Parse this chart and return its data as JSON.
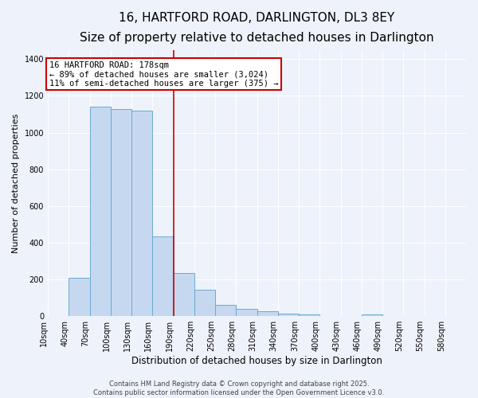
{
  "title": "16, HARTFORD ROAD, DARLINGTON, DL3 8EY",
  "subtitle": "Size of property relative to detached houses in Darlington",
  "xlabel": "Distribution of detached houses by size in Darlington",
  "ylabel": "Number of detached properties",
  "bar_color": "#c5d8f0",
  "bar_edge_color": "#6aabd2",
  "background_color": "#eef2fb",
  "grid_color": "#ffffff",
  "vline_x": 190,
  "annotation_text": "16 HARTFORD ROAD: 178sqm\n← 89% of detached houses are smaller (3,024)\n11% of semi-detached houses are larger (375) →",
  "annotation_box_facecolor": "#ffffff",
  "annotation_box_edgecolor": "#cc0000",
  "vline_color": "#cc0000",
  "bins": [
    10,
    40,
    70,
    100,
    130,
    160,
    190,
    220,
    250,
    280,
    310,
    340,
    370,
    400,
    430,
    460,
    490,
    520,
    550,
    580,
    610
  ],
  "values": [
    0,
    210,
    1140,
    1130,
    1120,
    435,
    235,
    145,
    60,
    40,
    25,
    15,
    10,
    0,
    0,
    10,
    0,
    0,
    0,
    0
  ],
  "ylim": [
    0,
    1450
  ],
  "yticks": [
    0,
    200,
    400,
    600,
    800,
    1000,
    1200,
    1400
  ],
  "footnote": "Contains HM Land Registry data © Crown copyright and database right 2025.\nContains public sector information licensed under the Open Government Licence v3.0.",
  "title_fontsize": 11,
  "subtitle_fontsize": 9,
  "xlabel_fontsize": 8.5,
  "ylabel_fontsize": 8,
  "tick_fontsize": 7,
  "annot_fontsize": 7.5,
  "footnote_fontsize": 6
}
